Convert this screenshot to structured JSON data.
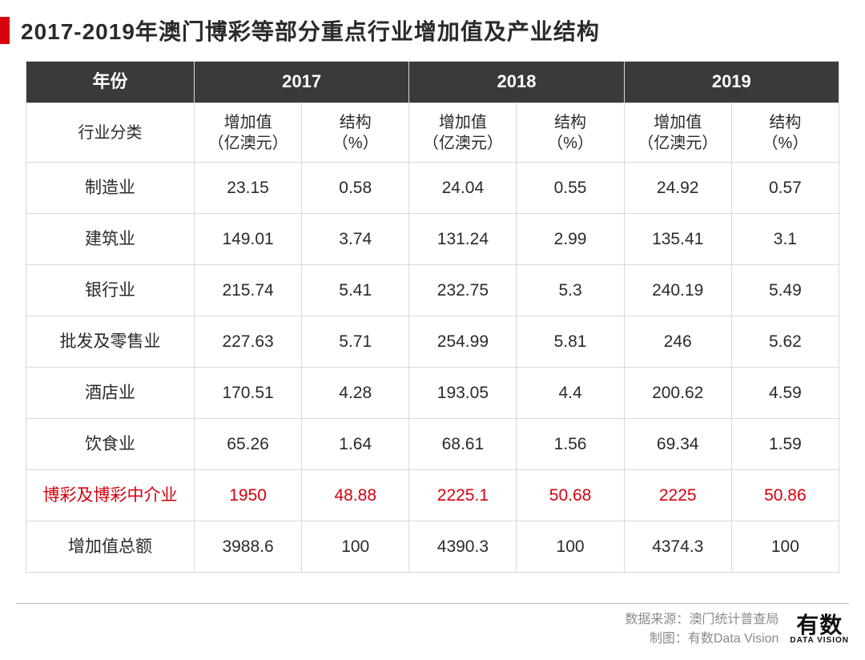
{
  "title": "2017-2019年澳门博彩等部分重点行业增加值及产业结构",
  "table": {
    "header": {
      "year_label": "年份",
      "years": [
        "2017",
        "2018",
        "2019"
      ],
      "category_label": "行业分类",
      "value_label": "增加值\n（亿澳元）",
      "struct_label": "结构\n（%）"
    },
    "rows": [
      {
        "name": "制造业",
        "v17": "23.15",
        "s17": "0.58",
        "v18": "24.04",
        "s18": "0.55",
        "v19": "24.92",
        "s19": "0.57",
        "highlight": false
      },
      {
        "name": "建筑业",
        "v17": "149.01",
        "s17": "3.74",
        "v18": "131.24",
        "s18": "2.99",
        "v19": "135.41",
        "s19": "3.1",
        "highlight": false
      },
      {
        "name": "银行业",
        "v17": "215.74",
        "s17": "5.41",
        "v18": "232.75",
        "s18": "5.3",
        "v19": "240.19",
        "s19": "5.49",
        "highlight": false
      },
      {
        "name": "批发及零售业",
        "v17": "227.63",
        "s17": "5.71",
        "v18": "254.99",
        "s18": "5.81",
        "v19": "246",
        "s19": "5.62",
        "highlight": false
      },
      {
        "name": "酒店业",
        "v17": "170.51",
        "s17": "4.28",
        "v18": "193.05",
        "s18": "4.4",
        "v19": "200.62",
        "s19": "4.59",
        "highlight": false
      },
      {
        "name": "饮食业",
        "v17": "65.26",
        "s17": "1.64",
        "v18": "68.61",
        "s18": "1.56",
        "v19": "69.34",
        "s19": "1.59",
        "highlight": false
      },
      {
        "name": "博彩及博彩中介业",
        "v17": "1950",
        "s17": "48.88",
        "v18": "2225.1",
        "s18": "50.68",
        "v19": "2225",
        "s19": "50.86",
        "highlight": true
      },
      {
        "name": "增加值总额",
        "v17": "3988.6",
        "s17": "100",
        "v18": "4390.3",
        "s18": "100",
        "v19": "4374.3",
        "s19": "100",
        "highlight": false
      }
    ]
  },
  "footer": {
    "source": "数据来源：澳门统计普查局",
    "chart_by": "制图：有数Data Vision",
    "logo_cn": "有数",
    "logo_en": "DATA VISION"
  },
  "colors": {
    "accent_red": "#d7000f",
    "header_bg": "#3a3a3a",
    "border": "#d9d9d9",
    "text": "#2a2a2a",
    "footer_text": "#8a8a8a"
  }
}
